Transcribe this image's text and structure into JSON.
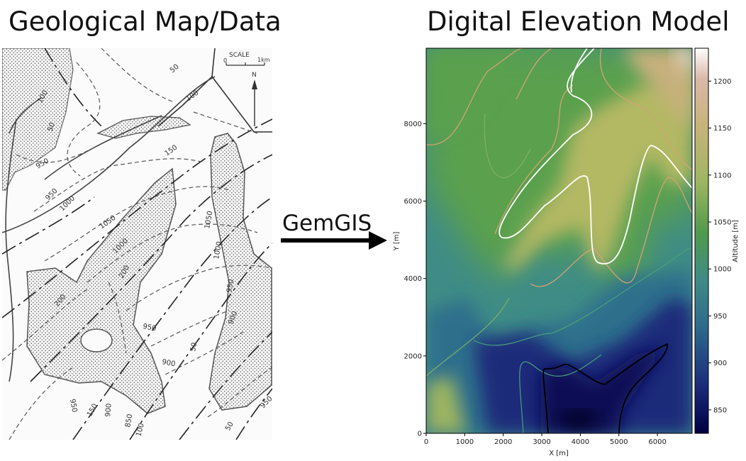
{
  "left_panel": {
    "title": "Geological Map/Data",
    "scale_label": "SCALE",
    "scale_zero": "0",
    "scale_end": "1km",
    "north_label": "N",
    "contour_labels": [
      "50",
      "100",
      "50",
      "100",
      "150",
      "950",
      "1000",
      "950",
      "1050",
      "1000",
      "1050",
      "1000",
      "950",
      "200",
      "200",
      "950",
      "900",
      "900",
      "50",
      "850",
      "900",
      "150",
      "100",
      "950",
      "950",
      "50"
    ]
  },
  "arrow": {
    "label": "GemGIS"
  },
  "right_panel": {
    "title": "Digital Elevation Model",
    "colorbar_label": "Altitude [m]",
    "colorbar_ticks": [
      "850",
      "900",
      "950",
      "1000",
      "1050",
      "1100",
      "1150",
      "1200"
    ],
    "colormap": [
      "#000040",
      "#1a2a7a",
      "#2e6b8c",
      "#3f8c86",
      "#4f9a4c",
      "#9db561",
      "#c8b47a",
      "#d9b8a8",
      "#ffffff"
    ]
  },
  "chart_data": {
    "type": "heatmap",
    "title": "",
    "xlabel": "X [m]",
    "ylabel": "Y [m]",
    "x_ticks": [
      "0",
      "1000",
      "2000",
      "3000",
      "4000",
      "5000",
      "6000"
    ],
    "y_ticks": [
      "0",
      "2000",
      "4000",
      "6000",
      "8000"
    ],
    "xlim": [
      0,
      6900
    ],
    "ylim": [
      0,
      9950
    ],
    "zlim": [
      825,
      1235
    ],
    "contour_levels": [
      850,
      900,
      950,
      1000,
      1050,
      1100
    ],
    "contour_colors": {
      "850": "#000000",
      "1100": "#ffffff"
    },
    "min_area": {
      "x": 3900,
      "y": 400,
      "value": 830
    },
    "max_area": {
      "x": 6800,
      "y": 9800,
      "value": 1230
    }
  }
}
